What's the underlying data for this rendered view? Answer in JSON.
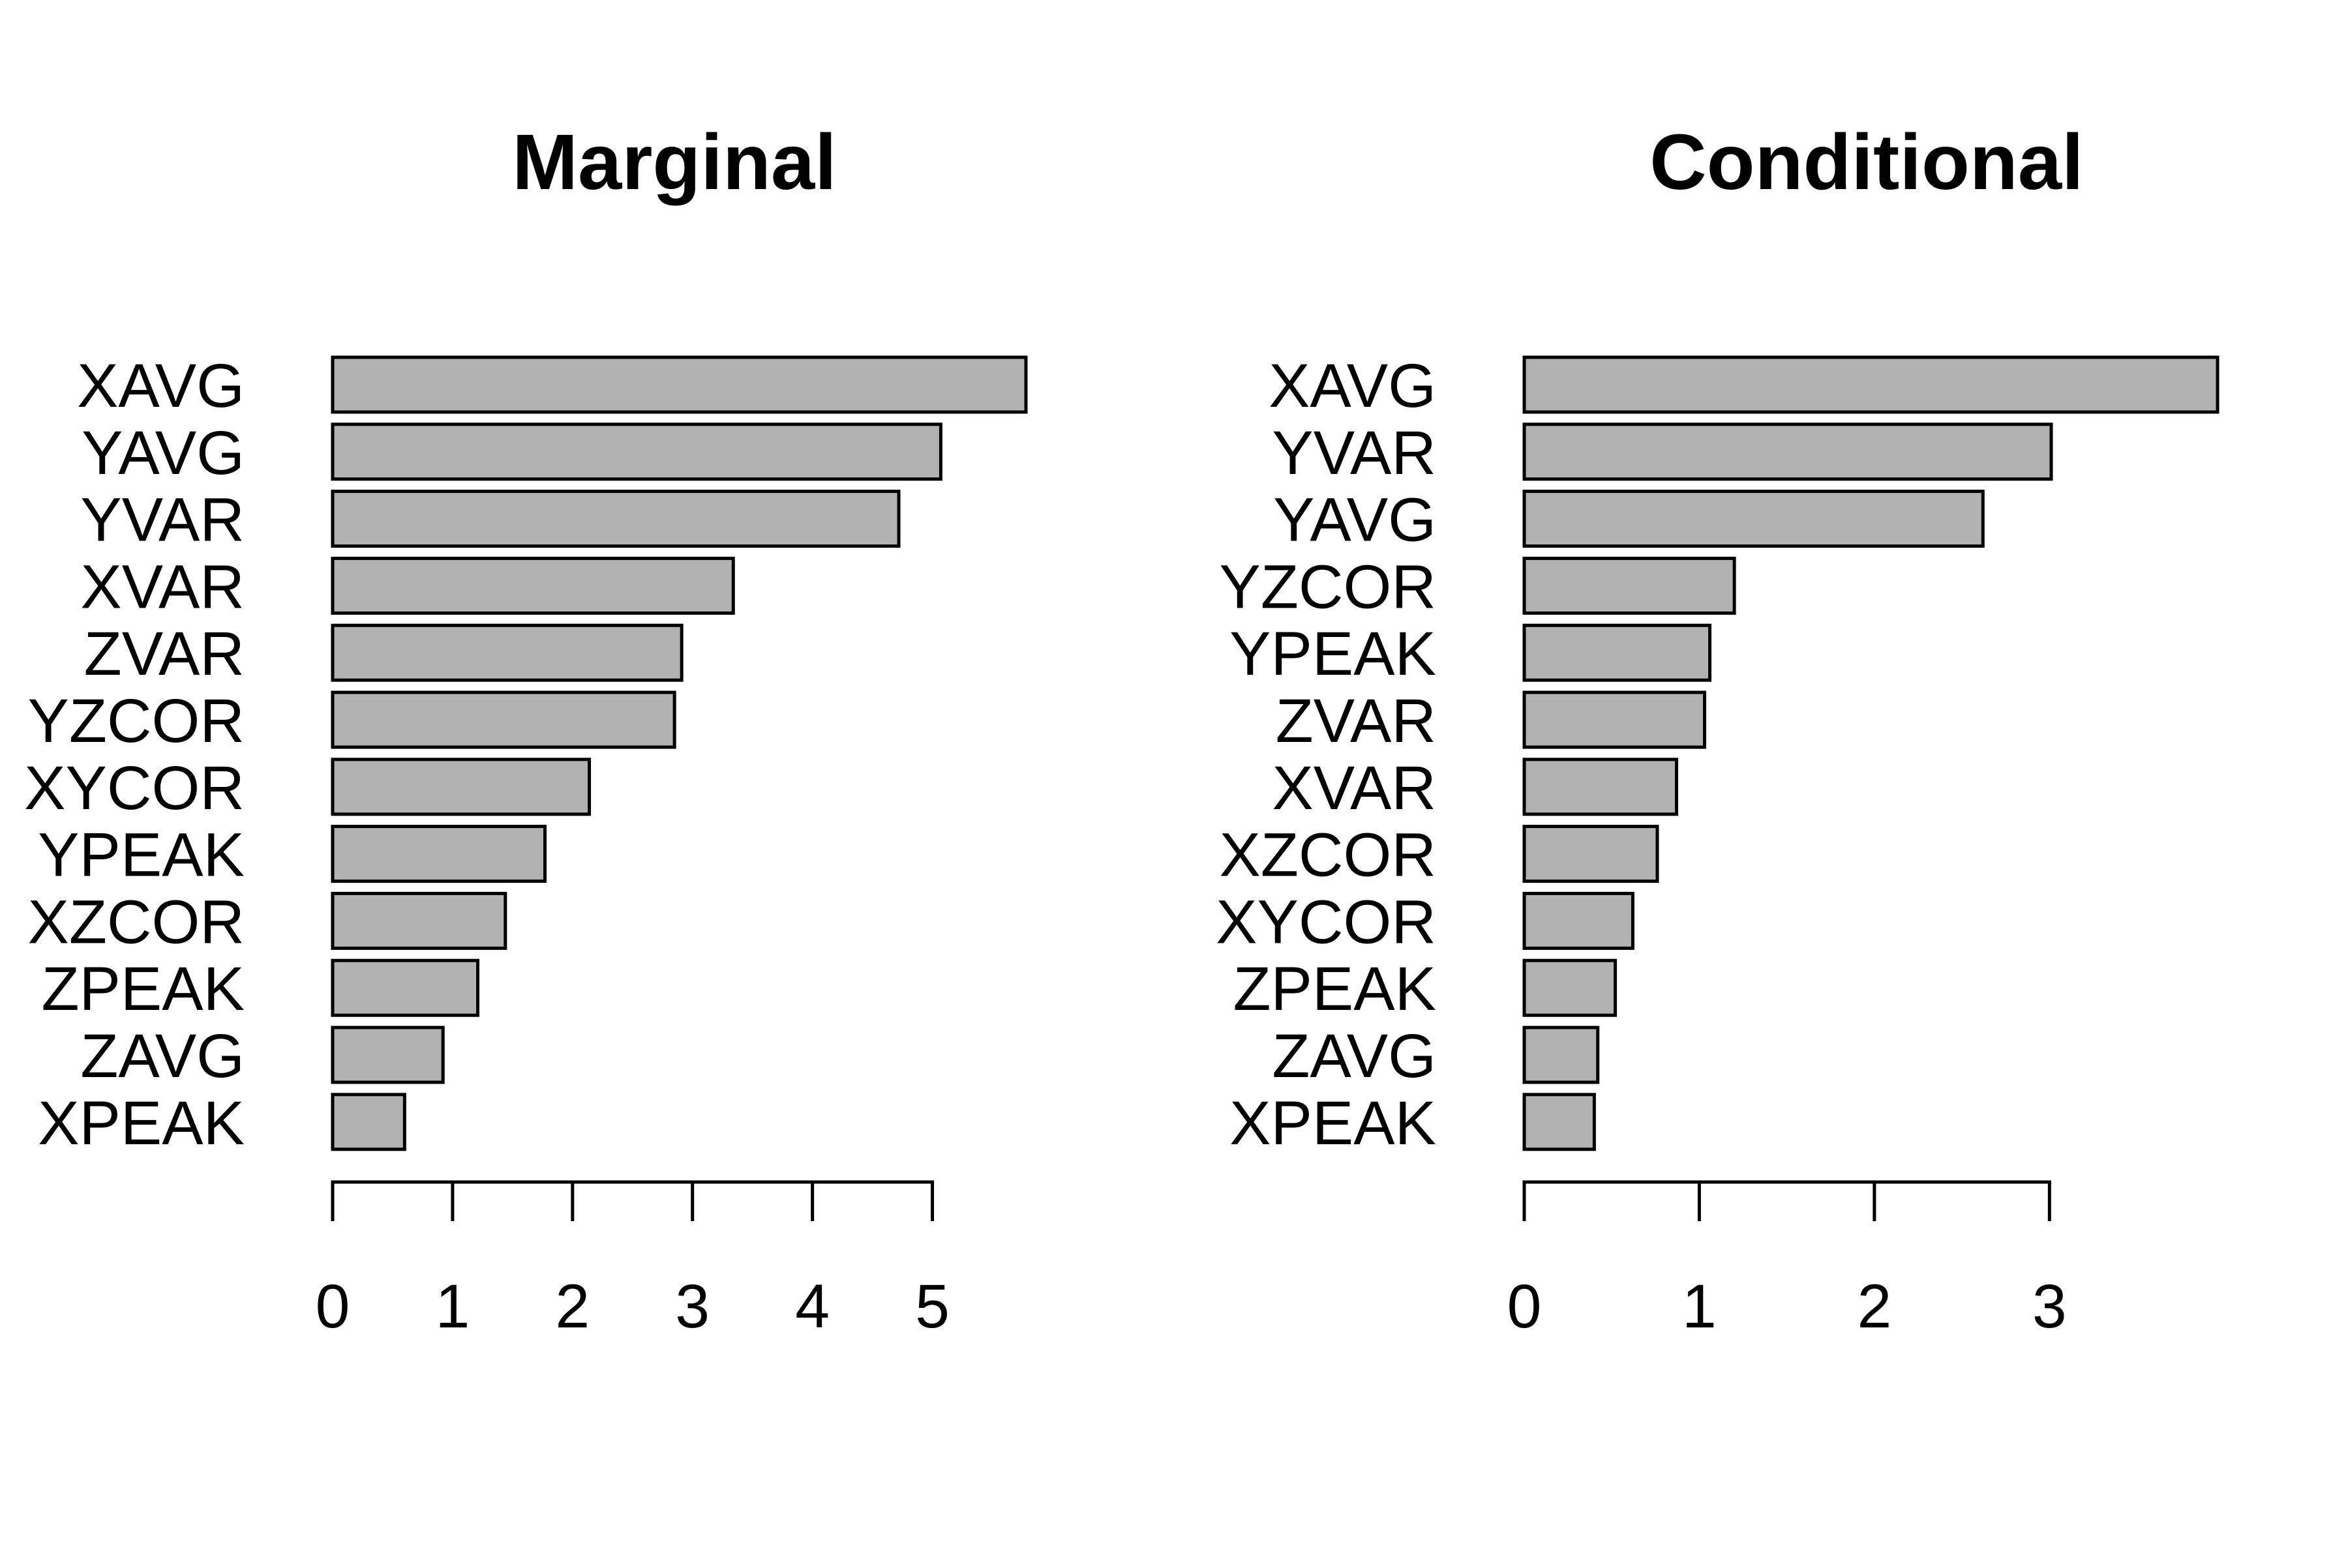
{
  "chart_data": [
    {
      "type": "bar",
      "orientation": "horizontal",
      "title": "Marginal",
      "xlabel": "",
      "ylabel": "",
      "categories": [
        "XAVG",
        "YAVG",
        "YVAR",
        "XVAR",
        "ZVAR",
        "YZCOR",
        "XYCOR",
        "YPEAK",
        "XZCOR",
        "ZPEAK",
        "ZAVG",
        "XPEAK"
      ],
      "values": [
        5.78,
        5.07,
        4.72,
        3.34,
        2.91,
        2.85,
        2.14,
        1.77,
        1.44,
        1.21,
        0.92,
        0.6
      ],
      "xlim": [
        0,
        5.78
      ],
      "xticks": [
        0,
        1,
        2,
        3,
        4,
        5
      ],
      "bar_color": "#b2b2b2",
      "grid": false,
      "legend": "none"
    },
    {
      "type": "bar",
      "orientation": "horizontal",
      "title": "Conditional",
      "xlabel": "",
      "ylabel": "",
      "categories": [
        "XAVG",
        "YVAR",
        "YAVG",
        "YZCOR",
        "YPEAK",
        "ZVAR",
        "XVAR",
        "XZCOR",
        "XYCOR",
        "ZPEAK",
        "ZAVG",
        "XPEAK"
      ],
      "values": [
        3.96,
        3.01,
        2.62,
        1.2,
        1.06,
        1.03,
        0.87,
        0.76,
        0.62,
        0.52,
        0.42,
        0.4
      ],
      "xlim": [
        0,
        3.96
      ],
      "xticks": [
        0,
        1,
        2,
        3
      ],
      "bar_color": "#b2b2b2",
      "grid": false,
      "legend": "none"
    }
  ]
}
